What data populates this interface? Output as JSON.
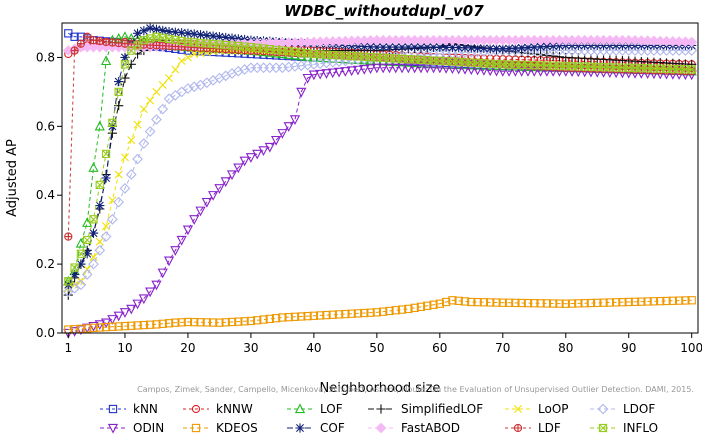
{
  "chart_data": {
    "type": "line",
    "title": "WDBC_withoutdupl_v07",
    "xlabel": "Neighborhood size",
    "ylabel": "Adjusted AP",
    "xlim": [
      0,
      101
    ],
    "ylim": [
      0,
      0.9
    ],
    "xticks": [
      1,
      10,
      20,
      30,
      40,
      50,
      60,
      70,
      80,
      90,
      100
    ],
    "yticks": [
      0.0,
      0.2,
      0.4,
      0.6,
      0.8
    ],
    "grid": false,
    "legend_position": "bottom",
    "watermark": "Campos, Zimek, Sander, Campello, Micenkova, Schubert, Assent, Houle: On the Evaluation of Unsupervised Outlier Detection. DAMI, 2015.",
    "series": [
      {
        "name": "kNN",
        "color": "#2233cc",
        "dash": "3,3",
        "marker": "square",
        "points": [
          [
            1,
            0.87
          ],
          [
            2,
            0.86
          ],
          [
            3,
            0.86
          ],
          [
            5,
            0.85
          ],
          [
            8,
            0.845
          ],
          [
            12,
            0.835
          ],
          [
            16,
            0.83
          ],
          [
            20,
            0.82
          ],
          [
            30,
            0.81
          ],
          [
            40,
            0.8
          ],
          [
            50,
            0.79
          ],
          [
            60,
            0.785
          ],
          [
            70,
            0.775
          ],
          [
            80,
            0.77
          ],
          [
            90,
            0.765
          ],
          [
            100,
            0.76
          ]
        ]
      },
      {
        "name": "kNNW",
        "color": "#dd2222",
        "dash": "3,3",
        "marker": "circle",
        "points": [
          [
            1,
            0.81
          ],
          [
            2,
            0.82
          ],
          [
            3,
            0.83
          ],
          [
            5,
            0.84
          ],
          [
            8,
            0.845
          ],
          [
            12,
            0.845
          ],
          [
            16,
            0.84
          ],
          [
            20,
            0.84
          ],
          [
            30,
            0.83
          ],
          [
            40,
            0.82
          ],
          [
            50,
            0.81
          ],
          [
            60,
            0.8
          ],
          [
            70,
            0.795
          ],
          [
            80,
            0.79
          ],
          [
            90,
            0.785
          ],
          [
            100,
            0.78
          ]
        ]
      },
      {
        "name": "LOF",
        "color": "#22bb22",
        "dash": "4,3",
        "marker": "triangle-up",
        "points": [
          [
            1,
            0.15
          ],
          [
            2,
            0.18
          ],
          [
            3,
            0.26
          ],
          [
            4,
            0.32
          ],
          [
            5,
            0.48
          ],
          [
            6,
            0.6
          ],
          [
            7,
            0.79
          ],
          [
            8,
            0.85
          ],
          [
            10,
            0.86
          ],
          [
            12,
            0.85
          ],
          [
            15,
            0.84
          ],
          [
            20,
            0.83
          ],
          [
            30,
            0.82
          ],
          [
            40,
            0.8
          ],
          [
            50,
            0.79
          ],
          [
            60,
            0.78
          ],
          [
            70,
            0.775
          ],
          [
            80,
            0.77
          ],
          [
            90,
            0.765
          ],
          [
            100,
            0.76
          ]
        ]
      },
      {
        "name": "SimplifiedLOF",
        "color": "#111111",
        "dash": "6,3",
        "marker": "plus",
        "points": [
          [
            1,
            0.11
          ],
          [
            2,
            0.16
          ],
          [
            3,
            0.2
          ],
          [
            4,
            0.24
          ],
          [
            5,
            0.29
          ],
          [
            6,
            0.36
          ],
          [
            7,
            0.46
          ],
          [
            8,
            0.58
          ],
          [
            9,
            0.66
          ],
          [
            10,
            0.74
          ],
          [
            11,
            0.78
          ],
          [
            12,
            0.81
          ],
          [
            14,
            0.83
          ],
          [
            17,
            0.84
          ],
          [
            20,
            0.83
          ],
          [
            30,
            0.82
          ],
          [
            40,
            0.82
          ],
          [
            50,
            0.82
          ],
          [
            60,
            0.83
          ],
          [
            62,
            0.84
          ],
          [
            70,
            0.82
          ],
          [
            80,
            0.8
          ],
          [
            90,
            0.79
          ],
          [
            100,
            0.78
          ]
        ]
      },
      {
        "name": "LoOP",
        "color": "#f0e000",
        "dash": "4,3",
        "marker": "x",
        "points": [
          [
            1,
            0.13
          ],
          [
            3,
            0.15
          ],
          [
            5,
            0.22
          ],
          [
            7,
            0.31
          ],
          [
            9,
            0.46
          ],
          [
            11,
            0.56
          ],
          [
            13,
            0.65
          ],
          [
            15,
            0.7
          ],
          [
            17,
            0.74
          ],
          [
            19,
            0.79
          ],
          [
            21,
            0.81
          ],
          [
            25,
            0.82
          ],
          [
            30,
            0.82
          ],
          [
            40,
            0.81
          ],
          [
            50,
            0.8
          ],
          [
            60,
            0.79
          ],
          [
            70,
            0.78
          ],
          [
            80,
            0.775
          ],
          [
            90,
            0.77
          ],
          [
            100,
            0.765
          ]
        ]
      },
      {
        "name": "LDOF",
        "color": "#b0b8ee",
        "dash": "4,3",
        "marker": "diamond",
        "points": [
          [
            1,
            0.12
          ],
          [
            3,
            0.14
          ],
          [
            5,
            0.2
          ],
          [
            7,
            0.28
          ],
          [
            9,
            0.38
          ],
          [
            11,
            0.46
          ],
          [
            13,
            0.55
          ],
          [
            15,
            0.62
          ],
          [
            17,
            0.68
          ],
          [
            20,
            0.71
          ],
          [
            22,
            0.72
          ],
          [
            25,
            0.74
          ],
          [
            28,
            0.76
          ],
          [
            30,
            0.77
          ],
          [
            35,
            0.77
          ],
          [
            40,
            0.78
          ],
          [
            50,
            0.8
          ],
          [
            60,
            0.81
          ],
          [
            70,
            0.82
          ],
          [
            80,
            0.82
          ],
          [
            90,
            0.82
          ],
          [
            100,
            0.82
          ]
        ]
      },
      {
        "name": "ODIN",
        "color": "#8822cc",
        "dash": "4,3",
        "marker": "triangle-down",
        "points": [
          [
            1,
            0.0
          ],
          [
            3,
            0.01
          ],
          [
            5,
            0.02
          ],
          [
            7,
            0.03
          ],
          [
            9,
            0.05
          ],
          [
            11,
            0.07
          ],
          [
            13,
            0.1
          ],
          [
            15,
            0.14
          ],
          [
            17,
            0.21
          ],
          [
            19,
            0.27
          ],
          [
            21,
            0.33
          ],
          [
            23,
            0.38
          ],
          [
            25,
            0.42
          ],
          [
            27,
            0.46
          ],
          [
            29,
            0.5
          ],
          [
            31,
            0.52
          ],
          [
            33,
            0.54
          ],
          [
            35,
            0.58
          ],
          [
            37,
            0.62
          ],
          [
            38,
            0.7
          ],
          [
            39,
            0.74
          ],
          [
            40,
            0.75
          ],
          [
            45,
            0.76
          ],
          [
            50,
            0.77
          ],
          [
            60,
            0.77
          ],
          [
            70,
            0.76
          ],
          [
            80,
            0.76
          ],
          [
            90,
            0.755
          ],
          [
            100,
            0.75
          ]
        ]
      },
      {
        "name": "KDEOS",
        "color": "#ee9900",
        "dash": "4,3",
        "marker": "square",
        "points": [
          [
            1,
            0.01
          ],
          [
            3,
            0.012
          ],
          [
            5,
            0.015
          ],
          [
            8,
            0.018
          ],
          [
            10,
            0.02
          ],
          [
            15,
            0.025
          ],
          [
            18,
            0.03
          ],
          [
            20,
            0.032
          ],
          [
            25,
            0.03
          ],
          [
            30,
            0.035
          ],
          [
            35,
            0.045
          ],
          [
            40,
            0.05
          ],
          [
            45,
            0.055
          ],
          [
            50,
            0.06
          ],
          [
            55,
            0.07
          ],
          [
            60,
            0.085
          ],
          [
            62,
            0.095
          ],
          [
            65,
            0.09
          ],
          [
            70,
            0.088
          ],
          [
            80,
            0.085
          ],
          [
            90,
            0.09
          ],
          [
            100,
            0.095
          ]
        ]
      },
      {
        "name": "COF",
        "color": "#112277",
        "dash": "6,3",
        "marker": "asterisk",
        "points": [
          [
            1,
            0.14
          ],
          [
            2,
            0.17
          ],
          [
            3,
            0.2
          ],
          [
            4,
            0.23
          ],
          [
            5,
            0.29
          ],
          [
            6,
            0.37
          ],
          [
            7,
            0.45
          ],
          [
            8,
            0.6
          ],
          [
            9,
            0.73
          ],
          [
            10,
            0.8
          ],
          [
            11,
            0.84
          ],
          [
            12,
            0.87
          ],
          [
            14,
            0.885
          ],
          [
            17,
            0.875
          ],
          [
            20,
            0.87
          ],
          [
            25,
            0.86
          ],
          [
            30,
            0.85
          ],
          [
            40,
            0.84
          ],
          [
            50,
            0.83
          ],
          [
            60,
            0.83
          ],
          [
            70,
            0.825
          ],
          [
            80,
            0.835
          ],
          [
            90,
            0.835
          ],
          [
            100,
            0.835
          ]
        ]
      },
      {
        "name": "FastABOD",
        "color": "#f5b8f5",
        "dash": "4,3",
        "marker": "diamond-filled",
        "points": [
          [
            1,
            0.82
          ],
          [
            3,
            0.83
          ],
          [
            5,
            0.83
          ],
          [
            8,
            0.83
          ],
          [
            12,
            0.83
          ],
          [
            20,
            0.835
          ],
          [
            30,
            0.84
          ],
          [
            40,
            0.845
          ],
          [
            50,
            0.85
          ],
          [
            60,
            0.85
          ],
          [
            70,
            0.85
          ],
          [
            80,
            0.85
          ],
          [
            90,
            0.85
          ],
          [
            100,
            0.845
          ]
        ]
      },
      {
        "name": "LDF",
        "color": "#cc3333",
        "dash": "3,3",
        "marker": "circle-plus",
        "points": [
          [
            1,
            0.28
          ],
          [
            2,
            0.82
          ],
          [
            3,
            0.84
          ],
          [
            4,
            0.86
          ],
          [
            5,
            0.85
          ],
          [
            7,
            0.845
          ],
          [
            10,
            0.84
          ],
          [
            15,
            0.835
          ],
          [
            20,
            0.83
          ],
          [
            30,
            0.82
          ],
          [
            40,
            0.81
          ],
          [
            50,
            0.8
          ],
          [
            60,
            0.79
          ],
          [
            70,
            0.78
          ],
          [
            80,
            0.77
          ],
          [
            90,
            0.765
          ],
          [
            100,
            0.76
          ]
        ]
      },
      {
        "name": "INFLO",
        "color": "#99cc22",
        "dash": "4,3",
        "marker": "square-x",
        "points": [
          [
            1,
            0.15
          ],
          [
            2,
            0.19
          ],
          [
            3,
            0.23
          ],
          [
            4,
            0.27
          ],
          [
            5,
            0.33
          ],
          [
            6,
            0.43
          ],
          [
            7,
            0.52
          ],
          [
            8,
            0.61
          ],
          [
            9,
            0.7
          ],
          [
            10,
            0.78
          ],
          [
            11,
            0.82
          ],
          [
            13,
            0.85
          ],
          [
            15,
            0.86
          ],
          [
            20,
            0.845
          ],
          [
            30,
            0.83
          ],
          [
            40,
            0.81
          ],
          [
            50,
            0.8
          ],
          [
            60,
            0.79
          ],
          [
            70,
            0.78
          ],
          [
            80,
            0.775
          ],
          [
            90,
            0.77
          ],
          [
            100,
            0.765
          ]
        ]
      }
    ]
  }
}
